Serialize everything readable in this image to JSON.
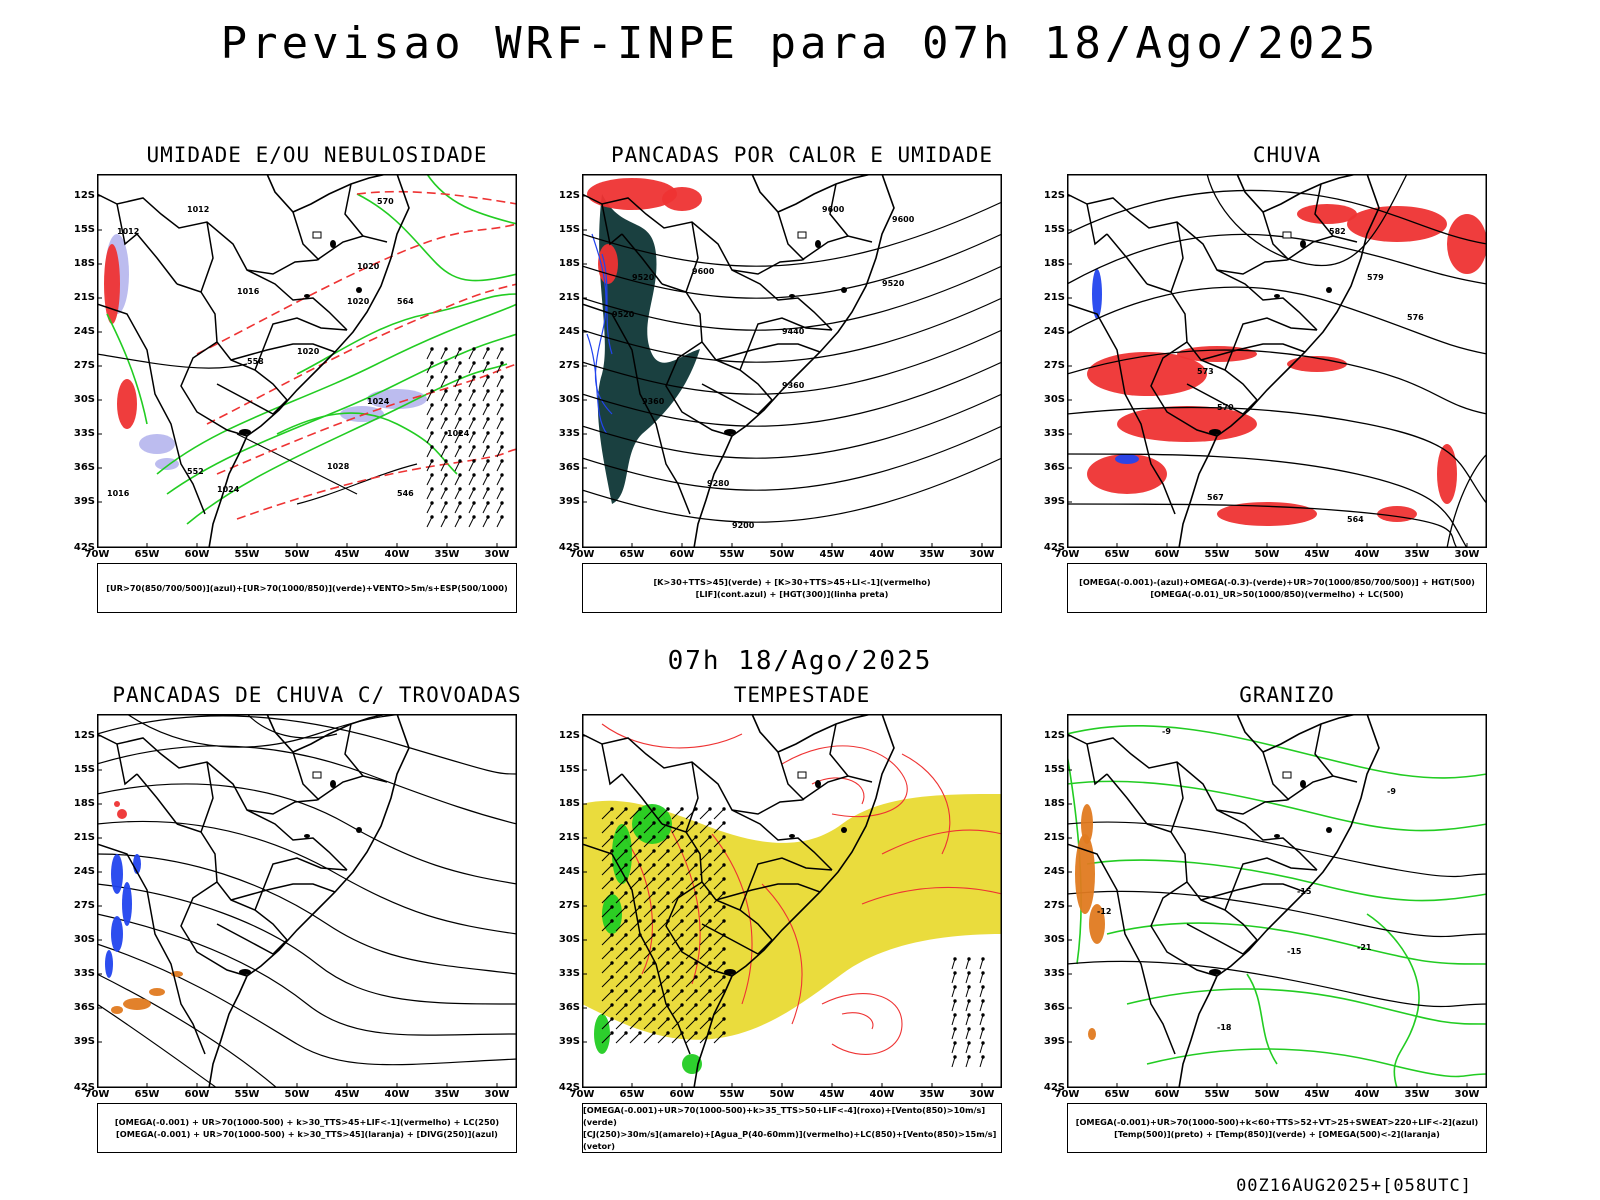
{
  "title": "Previsao WRF-INPE  para 07h 18/Ago/2025",
  "subtitle": "07h 18/Ago/2025",
  "footer": "00Z16AUG2025+[058UTC]",
  "axes": {
    "lat_labels": [
      "12S",
      "15S",
      "18S",
      "21S",
      "24S",
      "27S",
      "30S",
      "33S",
      "36S",
      "39S",
      "42S"
    ],
    "lon_labels": [
      "70W",
      "65W",
      "60W",
      "55W",
      "50W",
      "45W",
      "40W",
      "35W",
      "30W"
    ]
  },
  "panels": [
    {
      "title": "UMIDADE E/OU NEBULOSIDADE",
      "legend": [
        "[UR>70(850/700/500)](azul)+[UR>70(1000/850)](verde)+VENTO>5m/s+ESP(500/1000)"
      ],
      "contour_labels": [
        "1012",
        "1012",
        "1016",
        "1020",
        "1020",
        "1020",
        "1024",
        "1024",
        "1028",
        "1016",
        "1024",
        "570",
        "564",
        "558",
        "552",
        "546"
      ]
    },
    {
      "title": "PANCADAS POR CALOR E UMIDADE",
      "legend": [
        "[K>30+TTS>45](verde) + [K>30+TTS>45+LI<-1](vermelho)",
        "[LIF](cont.azul) + [HGT(300)](linha preta)"
      ],
      "contour_labels": [
        "9600",
        "9600",
        "9520",
        "9520",
        "9440",
        "9360",
        "9280",
        "9200",
        "9360",
        "9520",
        "9600"
      ]
    },
    {
      "title": "CHUVA",
      "legend": [
        "[OMEGA(-0.001)-(azul)+OMEGA(-0.3)-(verde)+UR>70(1000/850/700/500)] + HGT(500)",
        "[OMEGA(-0.01)_UR>50(1000/850)(vermelho) + LC(500)"
      ],
      "contour_labels": [
        "582",
        "579",
        "576",
        "573",
        "570",
        "567",
        "564"
      ]
    },
    {
      "title": "PANCADAS DE CHUVA C/ TROVOADAS",
      "legend": [
        "[OMEGA(-0.001) + UR>70(1000-500) + k>30_TTS>45+LIF<-1](vermelho) + LC(250)",
        "[OMEGA(-0.001) + UR>70(1000-500) + k>30_TTS>45](laranja) + [DIVG(250)](azul)"
      ],
      "contour_labels": []
    },
    {
      "title": "TEMPESTADE",
      "legend": [
        "[OMEGA(-0.001)+UR>70(1000-500)+k>35_TTS>50+LIF<-4](roxo)+[Vento(850)>10m/s](verde)",
        "[CJ(250)>30m/s](amarelo)+[Agua_P(40-60mm)](vermelho)+LC(850)+[Vento(850)>15m/s](vetor)"
      ],
      "contour_labels": []
    },
    {
      "title": "GRANIZO",
      "legend": [
        "[OMEGA(-0.001)+UR>70(1000-500)+k<60+TTS>52+VT>25+SWEAT>220+LIF<-2](azul)",
        "[Temp(500)](preto) + [Temp(850)](verde) + [OMEGA(500)<-2](laranja)"
      ],
      "contour_labels": [
        "-9",
        "-9",
        "-15",
        "-15",
        "-18",
        "-21",
        "-12"
      ]
    }
  ],
  "colors": {
    "green": "#22cc22",
    "red": "#ee3333",
    "blue": "#2244ee",
    "lavender": "#b8b8ee",
    "darkteal": "#1a4040",
    "yellow": "#e8d828",
    "orange": "#e07a20"
  }
}
